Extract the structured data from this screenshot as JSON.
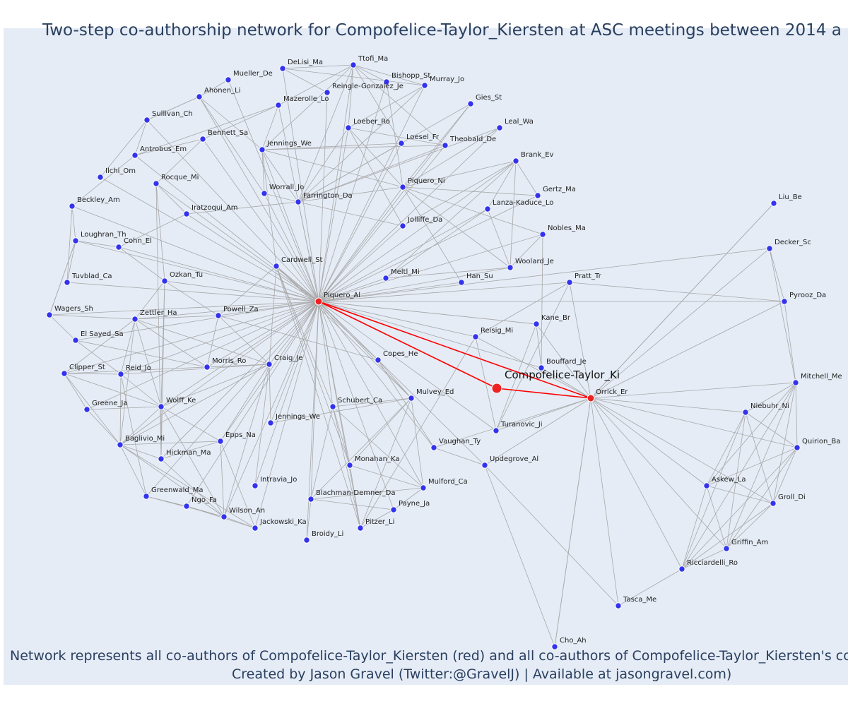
{
  "title": "Two-step co-authorship network for Compofelice-Taylor_Kiersten at ASC meetings between 2014 a",
  "caption_line1": "Network represents all co-authors of Compofelice-Taylor_Kiersten (red) and all co-authors of Compofelice-Taylor_Kiersten's co-a",
  "caption_line2": "Created by Jason Gravel (Twitter:@GravelJ) | Available at jasongravel.com)",
  "colors": {
    "node": "#3333ee",
    "focus": "#ee2222",
    "edge": "#a8a8a8",
    "focus_edge": "#ff0000",
    "background": "#e5ecf6"
  },
  "chart_data": {
    "type": "network",
    "focus": "Compofelice-Taylor_Ki",
    "nodes": [
      {
        "id": "Compofelice-Taylor_Ki",
        "color": "red",
        "focus": true
      },
      {
        "id": "Piquero_Al",
        "color": "red"
      },
      {
        "id": "Orrick_Er",
        "color": "red"
      },
      {
        "id": "DeLisi_Ma"
      },
      {
        "id": "Ttofi_Ma"
      },
      {
        "id": "Mueller_De"
      },
      {
        "id": "Bishopp_St"
      },
      {
        "id": "Murray_Jo"
      },
      {
        "id": "Reingle-Gonzalez_Je"
      },
      {
        "id": "Ahonen_Li"
      },
      {
        "id": "Mazerolle_Lo"
      },
      {
        "id": "Gies_St"
      },
      {
        "id": "Sullivan_Ch"
      },
      {
        "id": "Loeber_Ro"
      },
      {
        "id": "Leal_Wa"
      },
      {
        "id": "Bennett_Sa"
      },
      {
        "id": "Loesel_Fr"
      },
      {
        "id": "Theobald_De"
      },
      {
        "id": "Jennings_We"
      },
      {
        "id": "Antrobus_Em"
      },
      {
        "id": "Brank_Ev"
      },
      {
        "id": "Ilchi_Om"
      },
      {
        "id": "Rocque_Mi"
      },
      {
        "id": "Piquero_Ni"
      },
      {
        "id": "Worrall_Jo"
      },
      {
        "id": "Gertz_Ma"
      },
      {
        "id": "Farrington_Da"
      },
      {
        "id": "Lanza-Kaduce_Lo"
      },
      {
        "id": "Beckley_Am"
      },
      {
        "id": "Iratzoqui_Am"
      },
      {
        "id": "Liu_Be"
      },
      {
        "id": "Jolliffe_Da"
      },
      {
        "id": "Loughran_Th"
      },
      {
        "id": "Nobles_Ma"
      },
      {
        "id": "Cohn_El"
      },
      {
        "id": "Decker_Sc"
      },
      {
        "id": "Cardwell_St"
      },
      {
        "id": "Woolard_Je"
      },
      {
        "id": "Meltl_Mi"
      },
      {
        "id": "Tuvblad_Ca"
      },
      {
        "id": "Ozkan_Tu"
      },
      {
        "id": "Han_Su"
      },
      {
        "id": "Pratt_Tr"
      },
      {
        "id": "Pyrooz_Da"
      },
      {
        "id": "Wagers_Sh"
      },
      {
        "id": "Powell_Za"
      },
      {
        "id": "Zettler_Ha"
      },
      {
        "id": "Kane_Br"
      },
      {
        "id": "Reisig_Mi"
      },
      {
        "id": "El Sayed_Sa"
      },
      {
        "id": "Copes_He"
      },
      {
        "id": "Bouffard_Je"
      },
      {
        "id": "Morris_Ro"
      },
      {
        "id": "Clipper_St"
      },
      {
        "id": "Reid_Jo"
      },
      {
        "id": "Craig_Je"
      },
      {
        "id": "Mitchell_Me"
      },
      {
        "id": "Schubert_Ca"
      },
      {
        "id": "Mulvey_Ed"
      },
      {
        "id": "Wolff_Ke"
      },
      {
        "id": "Greene_Ja"
      },
      {
        "id": "Niebuhr_Ni"
      },
      {
        "id": "Turanovic_Ji"
      },
      {
        "id": "Jennings_We (2)",
        "label": "Jennings_We"
      },
      {
        "id": "Epps_Na"
      },
      {
        "id": "Baglivio_Mi"
      },
      {
        "id": "Vaughan_Ty"
      },
      {
        "id": "Quirion_Ba"
      },
      {
        "id": "Hickman_Ma"
      },
      {
        "id": "Updegrove_Al"
      },
      {
        "id": "Monahan_Ka"
      },
      {
        "id": "Intravia_Jo"
      },
      {
        "id": "Askew_La"
      },
      {
        "id": "Mulford_Ca"
      },
      {
        "id": "Greenwald_Ma"
      },
      {
        "id": "Blachman-Demner_Da"
      },
      {
        "id": "Ngo_Fa"
      },
      {
        "id": "Groll_Di"
      },
      {
        "id": "Payne_Ja"
      },
      {
        "id": "Wilson_An"
      },
      {
        "id": "Jackowski_Ka"
      },
      {
        "id": "Pitzer_Li"
      },
      {
        "id": "Broidy_Li"
      },
      {
        "id": "Griffin_Am"
      },
      {
        "id": "Ricciardelli_Ro"
      },
      {
        "id": "Tasca_Me"
      },
      {
        "id": "Cho_Ah"
      }
    ]
  }
}
